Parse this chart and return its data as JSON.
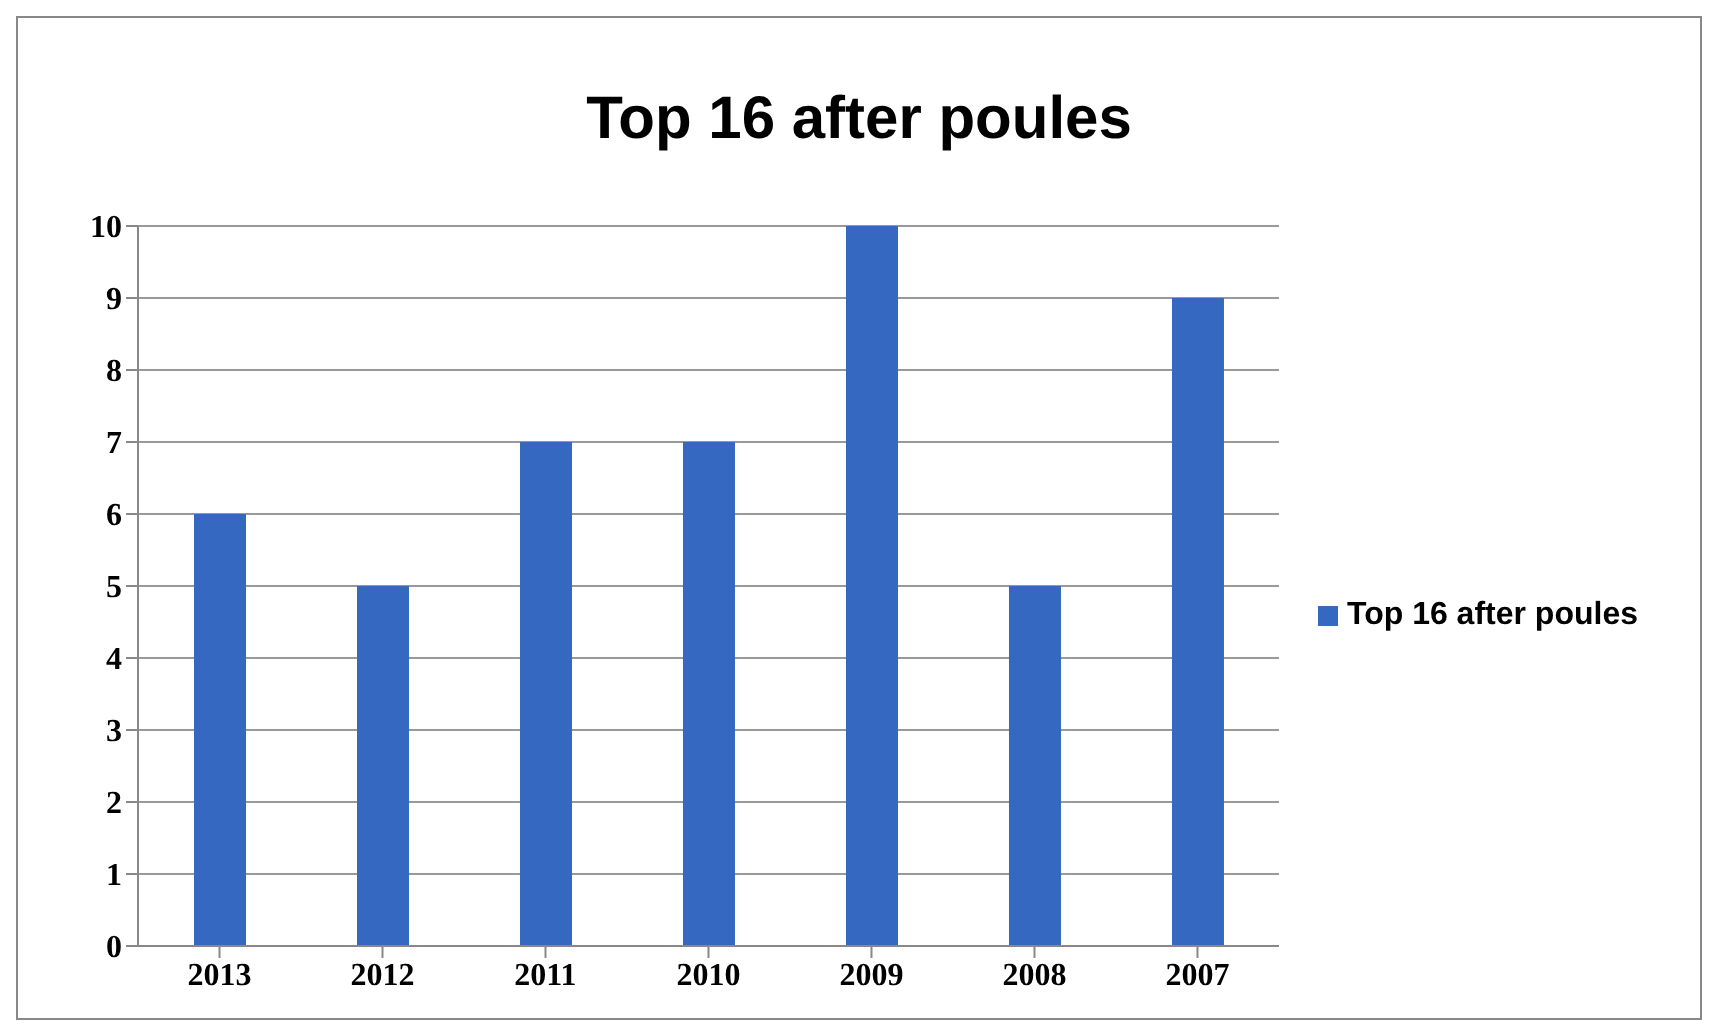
{
  "chart_data": {
    "type": "bar",
    "title": "Top 16 after poules",
    "categories": [
      "2013",
      "2012",
      "2011",
      "2010",
      "2009",
      "2008",
      "2007"
    ],
    "series": [
      {
        "name": "Top 16 after poules",
        "color": "#3568c0",
        "values": [
          6,
          5,
          7,
          7,
          10,
          5,
          9
        ]
      }
    ],
    "ylim": [
      0,
      10
    ],
    "yticks": [
      0,
      1,
      2,
      3,
      4,
      5,
      6,
      7,
      8,
      9,
      10
    ],
    "grid": "y",
    "legend": "right"
  }
}
